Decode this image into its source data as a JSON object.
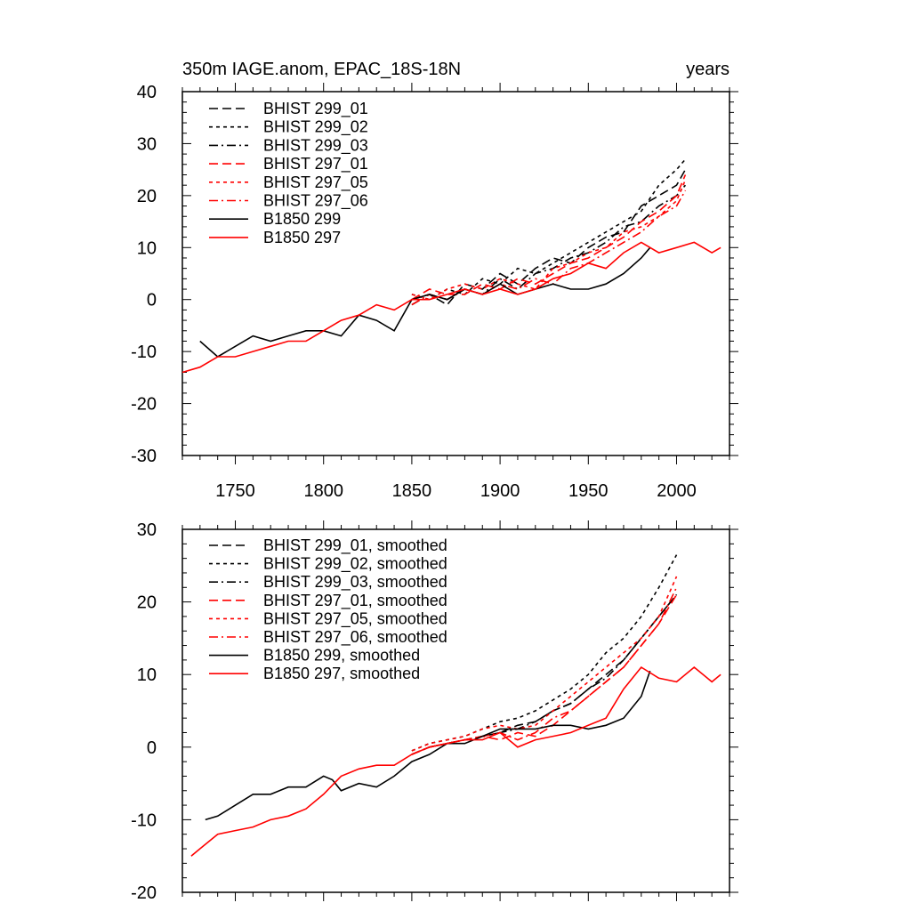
{
  "chart_data": [
    {
      "type": "line",
      "title": "350m IAGE.anom, EPAC_18S-18N",
      "units": "years",
      "xlim": [
        1720,
        2030
      ],
      "ylim": [
        -30,
        40
      ],
      "xticks": [
        1750,
        1800,
        1850,
        1900,
        1950,
        2000
      ],
      "yticks": [
        -30,
        -20,
        -10,
        0,
        10,
        20,
        30,
        40
      ],
      "xtick_labels": [
        "1750",
        "1800",
        "1850",
        "1900",
        "1950",
        "2000"
      ],
      "ytick_labels": [
        "-30",
        "-20",
        "-10",
        "0",
        "10",
        "20",
        "30",
        "40"
      ],
      "legend_position": "top-left",
      "series": [
        {
          "name": "BHIST 299_01",
          "color": "#000000",
          "dash": "dash",
          "x": [
            1850,
            1860,
            1870,
            1880,
            1890,
            1900,
            1910,
            1920,
            1930,
            1940,
            1950,
            1960,
            1970,
            1980,
            1990,
            2000,
            2005
          ],
          "y": [
            0,
            1,
            -1,
            3,
            2,
            5,
            3,
            6,
            8,
            7,
            10,
            12,
            13,
            18,
            20,
            22,
            25
          ]
        },
        {
          "name": "BHIST 299_02",
          "color": "#000000",
          "dash": "short",
          "x": [
            1850,
            1860,
            1870,
            1880,
            1890,
            1900,
            1910,
            1920,
            1930,
            1940,
            1950,
            1960,
            1970,
            1980,
            1990,
            2000,
            2005
          ],
          "y": [
            1,
            0,
            2,
            1,
            4,
            3,
            6,
            5,
            7,
            9,
            11,
            13,
            15,
            17,
            22,
            25,
            27
          ]
        },
        {
          "name": "BHIST 299_03",
          "color": "#000000",
          "dash": "dashdot",
          "x": [
            1850,
            1860,
            1870,
            1880,
            1890,
            1900,
            1910,
            1920,
            1930,
            1940,
            1950,
            1960,
            1970,
            1980,
            1990,
            2000,
            2005
          ],
          "y": [
            -1,
            1,
            0,
            2,
            1,
            4,
            2,
            5,
            6,
            8,
            9,
            11,
            14,
            15,
            18,
            20,
            22
          ]
        },
        {
          "name": "BHIST 297_01",
          "color": "#ff0000",
          "dash": "dash",
          "x": [
            1850,
            1860,
            1870,
            1880,
            1890,
            1900,
            1910,
            1920,
            1930,
            1940,
            1950,
            1960,
            1970,
            1980,
            1990,
            2000,
            2005
          ],
          "y": [
            0,
            2,
            1,
            1,
            3,
            2,
            4,
            3,
            5,
            7,
            8,
            10,
            12,
            15,
            17,
            20,
            24
          ]
        },
        {
          "name": "BHIST 297_05",
          "color": "#ff0000",
          "dash": "short",
          "x": [
            1850,
            1860,
            1870,
            1880,
            1890,
            1900,
            1910,
            1920,
            1930,
            1940,
            1950,
            1960,
            1970,
            1980,
            1990,
            2000,
            2005
          ],
          "y": [
            1,
            0,
            2,
            3,
            2,
            4,
            3,
            2,
            6,
            7,
            9,
            10,
            13,
            14,
            16,
            19,
            23
          ]
        },
        {
          "name": "BHIST 297_06",
          "color": "#ff0000",
          "dash": "dashdot",
          "x": [
            1850,
            1860,
            1870,
            1880,
            1890,
            1900,
            1910,
            1920,
            1930,
            1940,
            1950,
            1960,
            1970,
            1980,
            1990,
            2000,
            2005
          ],
          "y": [
            -1,
            1,
            0,
            2,
            1,
            3,
            2,
            4,
            3,
            6,
            7,
            9,
            11,
            13,
            16,
            18,
            21
          ]
        },
        {
          "name": "B1850 299",
          "color": "#000000",
          "dash": "solid",
          "x": [
            1730,
            1740,
            1750,
            1760,
            1770,
            1780,
            1790,
            1800,
            1810,
            1820,
            1830,
            1840,
            1850,
            1860,
            1870,
            1880,
            1890,
            1900,
            1910,
            1920,
            1930,
            1940,
            1950,
            1960,
            1970,
            1980,
            1985
          ],
          "y": [
            -8,
            -11,
            -9,
            -7,
            -8,
            -7,
            -6,
            -6,
            -7,
            -3,
            -4,
            -6,
            0,
            1,
            0,
            2,
            1,
            3,
            1,
            2,
            3,
            2,
            2,
            3,
            5,
            8,
            10
          ]
        },
        {
          "name": "B1850 297",
          "color": "#ff0000",
          "dash": "solid",
          "x": [
            1720,
            1730,
            1740,
            1750,
            1760,
            1770,
            1780,
            1790,
            1800,
            1810,
            1820,
            1830,
            1840,
            1850,
            1860,
            1870,
            1880,
            1890,
            1900,
            1910,
            1920,
            1930,
            1940,
            1950,
            1960,
            1970,
            1980,
            1990,
            2000,
            2010,
            2020,
            2025
          ],
          "y": [
            -14,
            -13,
            -11,
            -11,
            -10,
            -9,
            -8,
            -8,
            -6,
            -4,
            -3,
            -1,
            -2,
            0,
            0,
            1,
            2,
            1,
            2,
            1,
            2,
            4,
            5,
            7,
            6,
            9,
            11,
            9,
            10,
            11,
            9,
            10
          ]
        }
      ]
    },
    {
      "type": "line",
      "title": "",
      "xlim": [
        1720,
        2030
      ],
      "ylim": [
        -20,
        30
      ],
      "xticks": [
        1750,
        1800,
        1850,
        1900,
        1950,
        2000
      ],
      "yticks": [
        -20,
        -10,
        0,
        10,
        20,
        30
      ],
      "ytick_labels": [
        "-20",
        "-10",
        "0",
        "10",
        "20",
        "30"
      ],
      "legend_position": "top-left",
      "series": [
        {
          "name": "BHIST 299_01, smoothed",
          "color": "#000000",
          "dash": "dash",
          "x": [
            1850,
            1860,
            1870,
            1880,
            1890,
            1900,
            1910,
            1920,
            1930,
            1940,
            1950,
            1960,
            1970,
            1980,
            1990,
            2000
          ],
          "y": [
            -1,
            0,
            0.5,
            1,
            1.5,
            2,
            3,
            3.5,
            5,
            6,
            8,
            10,
            12,
            15,
            18,
            21
          ]
        },
        {
          "name": "BHIST 299_02, smoothed",
          "color": "#000000",
          "dash": "short",
          "x": [
            1850,
            1860,
            1870,
            1880,
            1890,
            1900,
            1910,
            1920,
            1930,
            1940,
            1950,
            1960,
            1970,
            1980,
            1990,
            2000
          ],
          "y": [
            -0.5,
            0.5,
            1,
            1.5,
            2.5,
            3.5,
            4,
            5,
            6.5,
            8,
            10,
            13,
            15,
            18,
            22,
            26.5
          ]
        },
        {
          "name": "BHIST 299_03, smoothed",
          "color": "#000000",
          "dash": "dashdot",
          "x": [
            1850,
            1860,
            1870,
            1880,
            1890,
            1900,
            1910,
            1920,
            1930,
            1940,
            1950,
            1960,
            1970,
            1980,
            1990,
            2000
          ],
          "y": [
            -1,
            0,
            0.5,
            1,
            1.5,
            2,
            2.5,
            3.5,
            5,
            6,
            8,
            9.5,
            12,
            15,
            18,
            21
          ]
        },
        {
          "name": "BHIST 297_01, smoothed",
          "color": "#ff0000",
          "dash": "dash",
          "x": [
            1850,
            1860,
            1870,
            1880,
            1890,
            1900,
            1910,
            1920,
            1930,
            1940,
            1950,
            1960,
            1970,
            1980,
            1990,
            2000
          ],
          "y": [
            -1,
            0,
            0.5,
            1,
            1.5,
            1,
            2,
            1.5,
            3,
            5,
            7,
            9,
            11,
            14,
            17,
            21
          ]
        },
        {
          "name": "BHIST 297_05, smoothed",
          "color": "#ff0000",
          "dash": "short",
          "x": [
            1850,
            1860,
            1870,
            1880,
            1890,
            1900,
            1910,
            1920,
            1930,
            1940,
            1950,
            1960,
            1970,
            1980,
            1990,
            2000
          ],
          "y": [
            -0.5,
            0.5,
            1,
            1.5,
            2.5,
            3,
            2.5,
            3,
            5,
            7,
            9,
            11,
            13,
            15,
            18,
            23.5
          ]
        },
        {
          "name": "BHIST 297_06, smoothed",
          "color": "#ff0000",
          "dash": "dashdot",
          "x": [
            1850,
            1860,
            1870,
            1880,
            1890,
            1900,
            1910,
            1920,
            1930,
            1940,
            1950,
            1960,
            1970,
            1980,
            1990,
            2000
          ],
          "y": [
            -1,
            0,
            0.5,
            1,
            1.5,
            2,
            1,
            2,
            4,
            5,
            7,
            9,
            11,
            14,
            17,
            22
          ]
        },
        {
          "name": "B1850 299, smoothed",
          "color": "#000000",
          "dash": "solid",
          "x": [
            1733,
            1740,
            1750,
            1760,
            1770,
            1780,
            1790,
            1800,
            1805,
            1810,
            1820,
            1830,
            1840,
            1850,
            1860,
            1870,
            1880,
            1890,
            1900,
            1910,
            1920,
            1930,
            1940,
            1950,
            1960,
            1970,
            1980,
            1985
          ],
          "y": [
            -10,
            -9.5,
            -8,
            -6.5,
            -6.5,
            -5.5,
            -5.5,
            -4,
            -4.5,
            -6,
            -5,
            -5.5,
            -4,
            -2,
            -1,
            0.5,
            0.5,
            1.5,
            2.5,
            2.5,
            2.5,
            3,
            3,
            2.5,
            3,
            4,
            7,
            10.5
          ]
        },
        {
          "name": "B1850 297, smoothed",
          "color": "#ff0000",
          "dash": "solid",
          "x": [
            1725,
            1730,
            1740,
            1750,
            1760,
            1770,
            1780,
            1790,
            1800,
            1810,
            1820,
            1830,
            1840,
            1850,
            1860,
            1870,
            1880,
            1890,
            1900,
            1910,
            1920,
            1930,
            1940,
            1950,
            1960,
            1970,
            1980,
            1990,
            2000,
            2010,
            2020,
            2025
          ],
          "y": [
            -15,
            -14,
            -12,
            -11.5,
            -11,
            -10,
            -9.5,
            -8.5,
            -6.5,
            -4,
            -3,
            -2.5,
            -2.5,
            -1,
            0,
            0.5,
            1,
            1,
            2,
            0,
            1,
            1.5,
            2,
            3,
            4,
            8,
            11,
            9.5,
            9,
            11,
            9,
            10
          ]
        }
      ]
    }
  ]
}
